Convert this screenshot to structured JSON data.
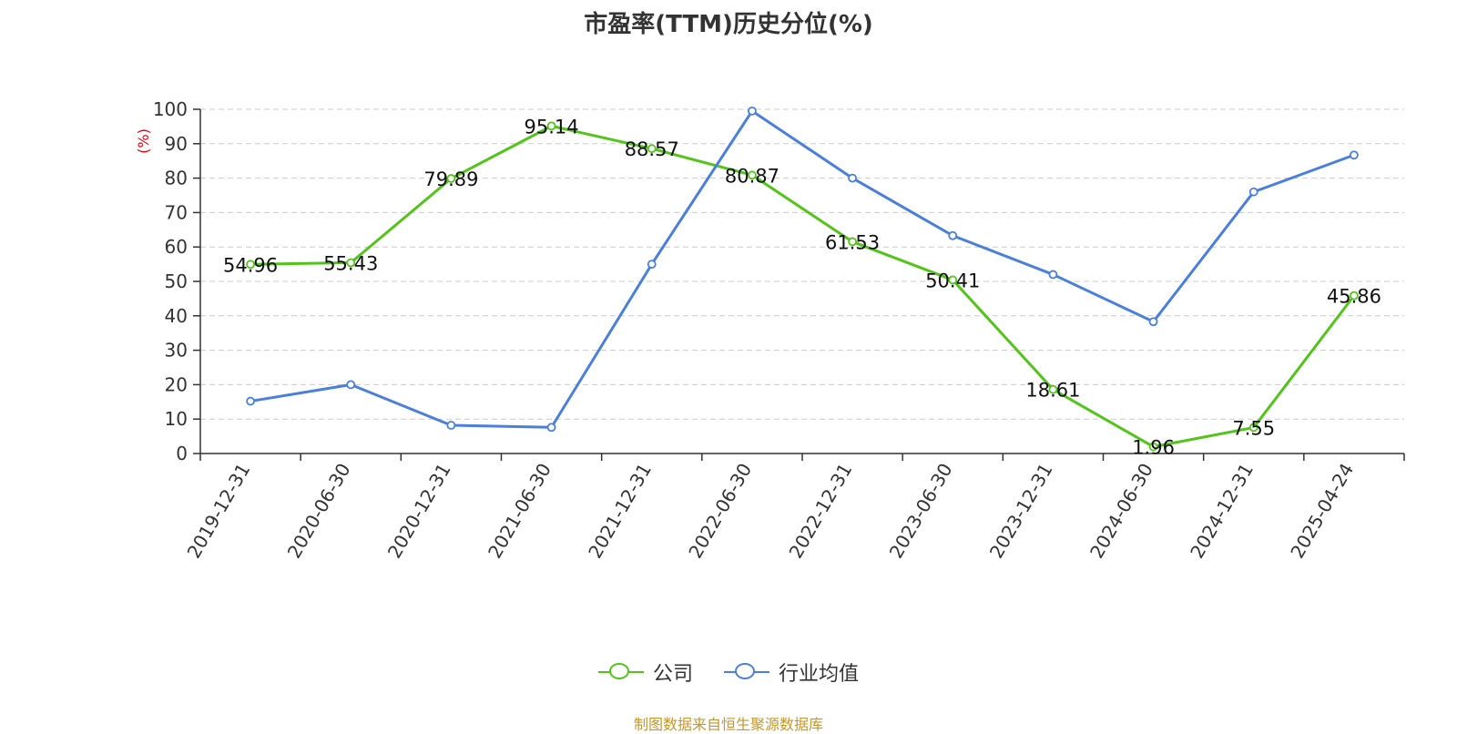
{
  "chart_data": {
    "type": "line",
    "title": "市盈率(TTM)历史分位(%)",
    "ylabel": "(%)",
    "categories": [
      "2019-12-31",
      "2020-06-30",
      "2020-12-31",
      "2021-06-30",
      "2021-12-31",
      "2022-06-30",
      "2022-12-31",
      "2023-06-30",
      "2023-12-31",
      "2024-06-30",
      "2024-12-31",
      "2025-04-24"
    ],
    "ylim": [
      0,
      100
    ],
    "yticks": [
      0,
      10,
      20,
      30,
      40,
      50,
      60,
      70,
      80,
      90,
      100
    ],
    "grid": true,
    "legend_position": "bottom",
    "series": [
      {
        "name": "公司",
        "color": "#52c41a",
        "data_labels": true,
        "values": [
          54.96,
          55.43,
          79.89,
          95.14,
          88.57,
          80.87,
          61.53,
          50.41,
          18.61,
          1.96,
          7.55,
          45.86
        ]
      },
      {
        "name": "行业均值",
        "color": "#4a7fdc",
        "data_labels": false,
        "values": [
          15.2,
          20.0,
          8.2,
          7.6,
          55.0,
          99.5,
          80.0,
          63.3,
          52.0,
          38.3,
          76.0,
          86.7
        ]
      }
    ]
  },
  "footer": {
    "source": "制图数据来自恒生聚源数据库"
  },
  "colors": {
    "ylabel": "#e8000b",
    "grid": "#cccccc",
    "axis": "#333333"
  }
}
